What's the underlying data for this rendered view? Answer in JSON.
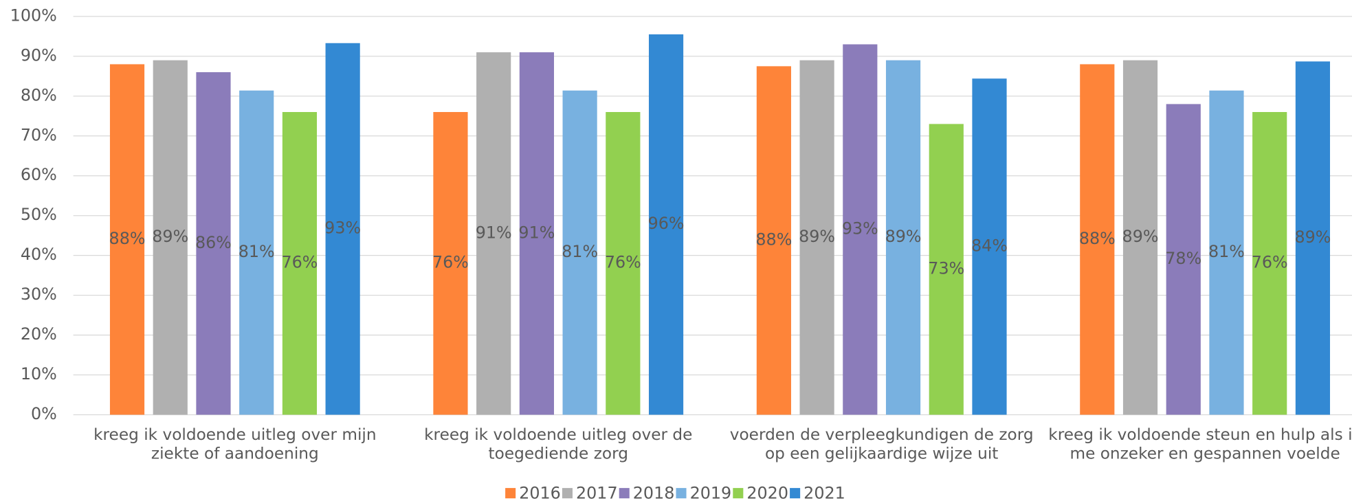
{
  "chart_data": {
    "type": "bar",
    "categories": [
      "kreeg ik voldoende uitleg over mijn ziekte of aandoening",
      "kreeg ik voldoende uitleg over de toegediende zorg",
      "voerden de verpleegkundigen de zorg op een gelijkaardige wijze uit",
      "kreeg ik voldoende steun en hulp als ik me onzeker en gespannen voelde"
    ],
    "series": [
      {
        "name": "2016",
        "color": "#fe8439",
        "values": [
          88,
          76,
          87.5,
          88
        ],
        "value_labels": [
          "88%",
          "76%",
          "88%",
          "88%"
        ]
      },
      {
        "name": "2017",
        "color": "#b0b0b0",
        "values": [
          89,
          91,
          89,
          89
        ],
        "value_labels": [
          "89%",
          "91%",
          "89%",
          "89%"
        ]
      },
      {
        "name": "2018",
        "color": "#8b7cba",
        "values": [
          86,
          91,
          93,
          78
        ],
        "value_labels": [
          "86%",
          "91%",
          "93%",
          "78%"
        ]
      },
      {
        "name": "2019",
        "color": "#78b1e0",
        "values": [
          81.4,
          81.4,
          89,
          81.4
        ],
        "value_labels": [
          "81%",
          "81%",
          "89%",
          "81%"
        ]
      },
      {
        "name": "2020",
        "color": "#92d050",
        "values": [
          76,
          76,
          73,
          76
        ],
        "value_labels": [
          "76%",
          "76%",
          "73%",
          "76%"
        ]
      },
      {
        "name": "2021",
        "color": "#3389d3",
        "values": [
          93.3,
          95.5,
          84.4,
          88.7
        ],
        "value_labels": [
          "93%",
          "96%",
          "84%",
          "89%"
        ]
      }
    ],
    "ylim": [
      0,
      100
    ],
    "yticks": [
      {
        "value": 0,
        "label": "0%"
      },
      {
        "value": 10,
        "label": "10%"
      },
      {
        "value": 20,
        "label": "20%"
      },
      {
        "value": 30,
        "label": "30%"
      },
      {
        "value": 40,
        "label": "40%"
      },
      {
        "value": 50,
        "label": "50%"
      },
      {
        "value": 60,
        "label": "60%"
      },
      {
        "value": 70,
        "label": "70%"
      },
      {
        "value": 80,
        "label": "80%"
      },
      {
        "value": 90,
        "label": "90%"
      },
      {
        "value": 100,
        "label": "100%"
      }
    ],
    "grid": true,
    "legend": "bottom"
  }
}
